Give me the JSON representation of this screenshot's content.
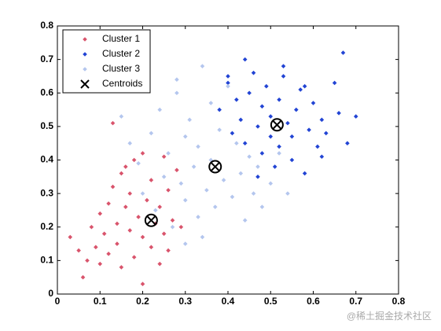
{
  "chart_data": {
    "type": "scatter",
    "xlim": [
      0,
      0.8
    ],
    "ylim": [
      0,
      0.8
    ],
    "xticks": [
      0,
      0.1,
      0.2,
      0.3,
      0.4,
      0.5,
      0.6,
      0.7,
      0.8
    ],
    "yticks": [
      0,
      0.1,
      0.2,
      0.3,
      0.4,
      0.5,
      0.6,
      0.7,
      0.8
    ],
    "legend": "upper left",
    "series": [
      {
        "name": "Cluster 1",
        "color": "#d9546c",
        "marker": "diamond",
        "x": [
          0.03,
          0.05,
          0.06,
          0.07,
          0.08,
          0.09,
          0.1,
          0.1,
          0.11,
          0.12,
          0.12,
          0.13,
          0.14,
          0.14,
          0.15,
          0.15,
          0.16,
          0.17,
          0.17,
          0.18,
          0.18,
          0.19,
          0.2,
          0.2,
          0.21,
          0.22,
          0.22,
          0.23,
          0.24,
          0.24,
          0.25,
          0.26,
          0.26,
          0.27,
          0.28,
          0.29,
          0.13,
          0.2,
          0.16,
          0.25
        ],
        "y": [
          0.17,
          0.13,
          0.05,
          0.1,
          0.2,
          0.14,
          0.24,
          0.09,
          0.18,
          0.27,
          0.12,
          0.32,
          0.21,
          0.15,
          0.36,
          0.08,
          0.26,
          0.19,
          0.3,
          0.11,
          0.4,
          0.23,
          0.03,
          0.17,
          0.28,
          0.14,
          0.34,
          0.21,
          0.09,
          0.26,
          0.18,
          0.31,
          0.13,
          0.22,
          0.37,
          0.2,
          0.51,
          0.42,
          0.38,
          0.41
        ]
      },
      {
        "name": "Cluster 2",
        "color": "#2244d4",
        "marker": "diamond",
        "x": [
          0.38,
          0.4,
          0.41,
          0.42,
          0.43,
          0.44,
          0.45,
          0.46,
          0.47,
          0.48,
          0.48,
          0.49,
          0.5,
          0.5,
          0.51,
          0.52,
          0.52,
          0.53,
          0.54,
          0.55,
          0.55,
          0.56,
          0.57,
          0.58,
          0.59,
          0.6,
          0.61,
          0.62,
          0.63,
          0.65,
          0.66,
          0.67,
          0.68,
          0.7,
          0.44,
          0.47,
          0.53,
          0.58,
          0.62,
          0.4
        ],
        "y": [
          0.55,
          0.63,
          0.48,
          0.58,
          0.52,
          0.45,
          0.6,
          0.66,
          0.5,
          0.42,
          0.56,
          0.62,
          0.47,
          0.53,
          0.38,
          0.58,
          0.44,
          0.65,
          0.51,
          0.47,
          0.4,
          0.55,
          0.61,
          0.36,
          0.49,
          0.57,
          0.44,
          0.52,
          0.48,
          0.63,
          0.54,
          0.72,
          0.45,
          0.53,
          0.7,
          0.35,
          0.68,
          0.62,
          0.41,
          0.65
        ]
      },
      {
        "name": "Cluster 3",
        "color": "#b4c6ee",
        "marker": "diamond",
        "x": [
          0.15,
          0.17,
          0.19,
          0.2,
          0.22,
          0.23,
          0.24,
          0.25,
          0.26,
          0.27,
          0.28,
          0.29,
          0.3,
          0.3,
          0.31,
          0.32,
          0.33,
          0.33,
          0.34,
          0.35,
          0.36,
          0.36,
          0.37,
          0.38,
          0.39,
          0.4,
          0.41,
          0.42,
          0.43,
          0.44,
          0.45,
          0.46,
          0.47,
          0.48,
          0.5,
          0.52,
          0.54,
          0.34,
          0.3,
          0.28
        ],
        "y": [
          0.53,
          0.45,
          0.39,
          0.3,
          0.48,
          0.25,
          0.55,
          0.35,
          0.42,
          0.2,
          0.6,
          0.33,
          0.47,
          0.28,
          0.52,
          0.38,
          0.23,
          0.44,
          0.68,
          0.31,
          0.57,
          0.4,
          0.26,
          0.49,
          0.34,
          0.62,
          0.29,
          0.45,
          0.36,
          0.22,
          0.41,
          0.3,
          0.38,
          0.26,
          0.33,
          0.42,
          0.3,
          0.17,
          0.15,
          0.64
        ]
      },
      {
        "name": "Centroids",
        "color": "#000000",
        "marker": "x",
        "x": [
          0.22,
          0.37,
          0.515
        ],
        "y": [
          0.22,
          0.38,
          0.505
        ]
      }
    ],
    "watermark": "@稀土掘金技术社区"
  }
}
